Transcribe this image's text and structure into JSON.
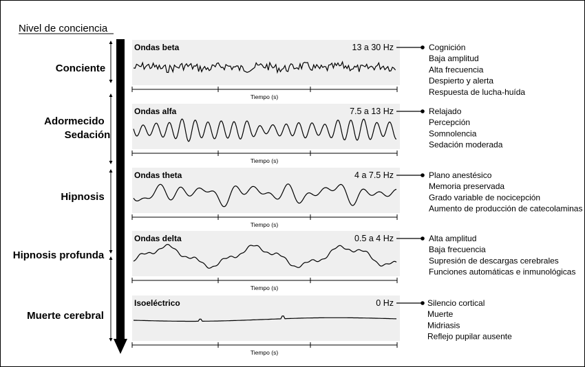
{
  "title": "Nivel de conciencia",
  "levels": [
    [
      "Conciente"
    ],
    [
      "Adormecido",
      "Sedación"
    ],
    [
      "Hipnosis"
    ],
    [
      "Hipnosis profunda"
    ],
    [
      "Muerte cerebral"
    ]
  ],
  "panels": [
    {
      "wave_name": "Ondas beta",
      "frequency": "13 a 30 Hz",
      "axis_label": "Tiempo (s)",
      "features": [
        "Cognición",
        "Baja amplitud",
        "Alta frecuencia",
        "Despierto y alerta",
        "Respuesta de lucha-huída"
      ]
    },
    {
      "wave_name": "Ondas alfa",
      "frequency": "7.5 a 13 Hz",
      "axis_label": "Tiempo (s)",
      "features": [
        "Relajado",
        "Percepción",
        "Somnolencia",
        "Sedación moderada"
      ]
    },
    {
      "wave_name": "Ondas theta",
      "frequency": "4 a 7.5 Hz",
      "axis_label": "Tiempo (s)",
      "features": [
        "Plano anestésico",
        "Memoria preservada",
        "Grado variable de nocicepción",
        "Aumento de producción de catecolaminas"
      ]
    },
    {
      "wave_name": "Ondas delta",
      "frequency": "0.5 a 4 Hz",
      "axis_label": "Tiempo (s)",
      "features": [
        "Alta amplitud",
        "Baja frecuencia",
        "Supresión de descargas cerebrales",
        "Funciones automáticas e inmunológicas"
      ]
    },
    {
      "wave_name": "Isoeléctrico",
      "frequency": "0 Hz",
      "axis_label": "Tiempo (s)",
      "features": [
        "Silencio cortical",
        "Muerte",
        "Midriasis",
        "Reflejo pupilar ausente"
      ]
    }
  ],
  "colors": {
    "panel_background": "#efefef",
    "ink": "#000000",
    "arrow": "#000000"
  }
}
